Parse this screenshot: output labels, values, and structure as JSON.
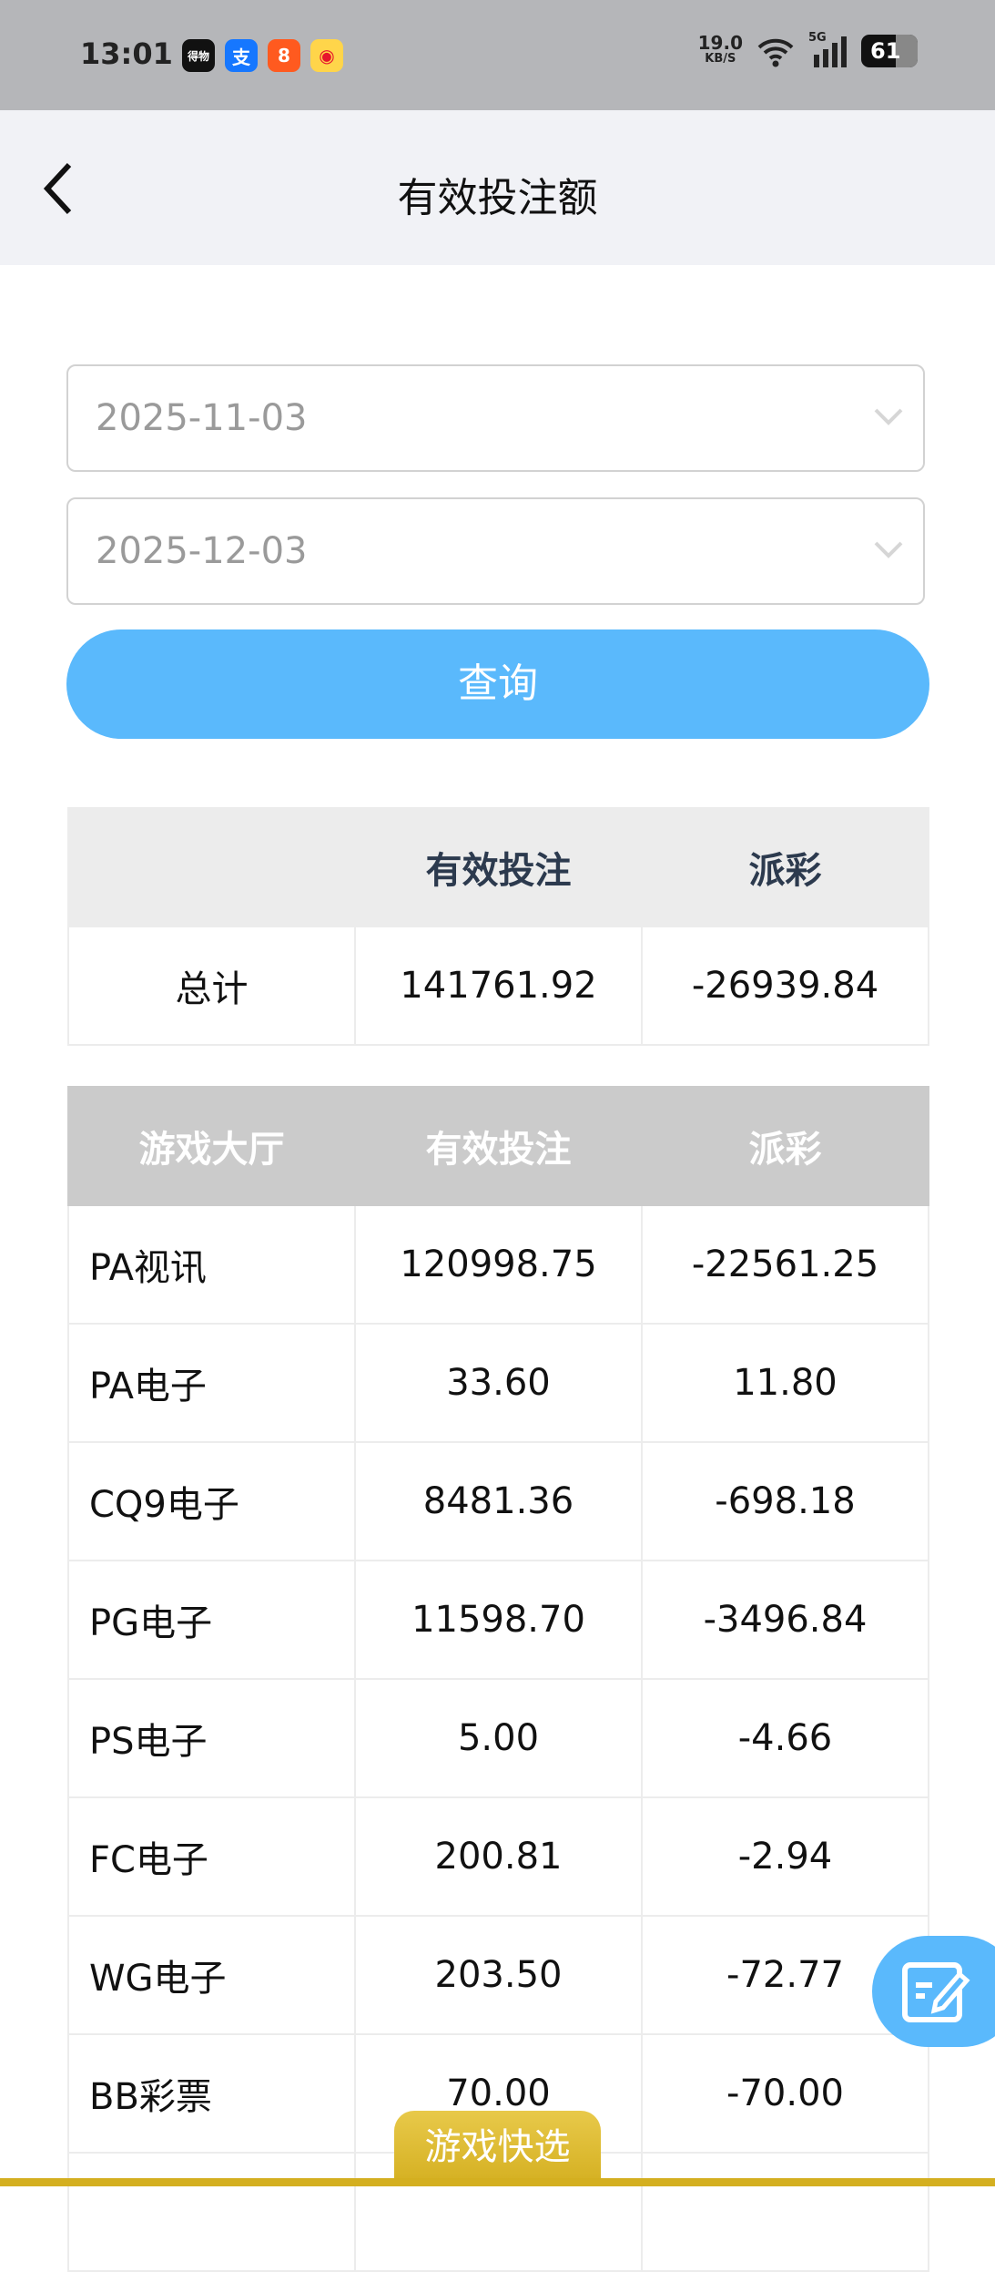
{
  "status_bar": {
    "time": "13:01",
    "net_speed": "19.0",
    "net_unit": "KB/S",
    "network": "5G",
    "battery": "61",
    "app_icons": [
      "dewu-icon",
      "alipay-icon",
      "kuaishou-icon",
      "weibo-icon"
    ]
  },
  "header": {
    "title": "有效投注额",
    "back_icon": "chevron-left-icon"
  },
  "filters": {
    "start_date": "2025-11-03",
    "end_date": "2025-12-03",
    "query_label": "查询"
  },
  "summary_table": {
    "headers": [
      "",
      "有效投注",
      "派彩"
    ],
    "rows": [
      [
        "总计",
        "141761.92",
        "-26939.84"
      ]
    ]
  },
  "detail_table": {
    "headers": [
      "游戏大厅",
      "有效投注",
      "派彩"
    ],
    "rows": [
      [
        "PA视讯",
        "120998.75",
        "-22561.25"
      ],
      [
        "PA电子",
        "33.60",
        "11.80"
      ],
      [
        "CQ9电子",
        "8481.36",
        "-698.18"
      ],
      [
        "PG电子",
        "11598.70",
        "-3496.84"
      ],
      [
        "PS电子",
        "5.00",
        "-4.66"
      ],
      [
        "FC电子",
        "200.81",
        "-2.94"
      ],
      [
        "WG电子",
        "203.50",
        "-72.77"
      ],
      [
        "BB彩票",
        "70.00",
        "-70.00"
      ],
      [
        "",
        "",
        ""
      ]
    ]
  },
  "bottom_tab": {
    "label": "游戏快选"
  },
  "colors": {
    "accent": "#5ab9fc",
    "gold": "#d4af20",
    "header_bg": "#f1f2f6"
  }
}
